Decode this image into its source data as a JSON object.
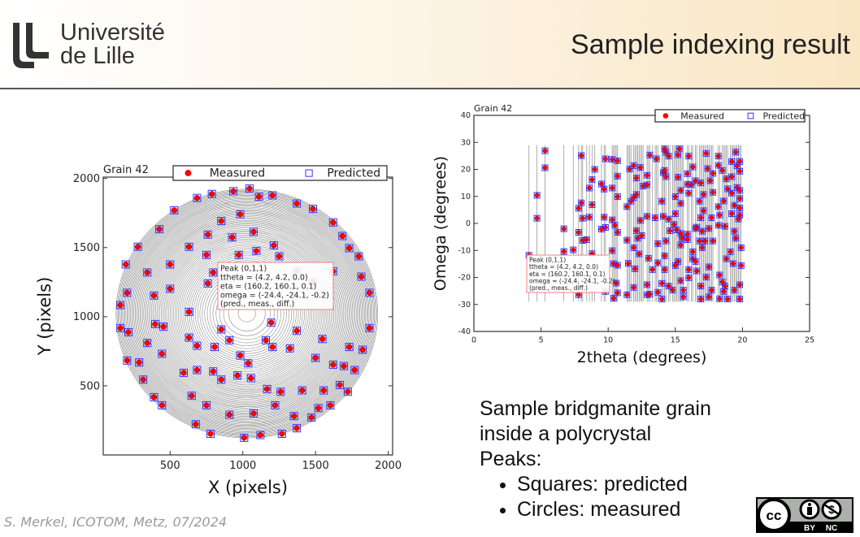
{
  "header": {
    "logo_text_line1": "Université",
    "logo_text_line2": "de Lille",
    "title": "Sample indexing result"
  },
  "description": {
    "lines": [
      "Sample bridgmanite grain",
      "inside a polycrystal",
      "Peaks:"
    ],
    "bullets": [
      "Squares: predicted",
      "Circles: measured"
    ]
  },
  "footer": {
    "credit": "S. Merkel, ICOTOM, Metz, 07/2024"
  },
  "license": {
    "badge": "CC BY NC",
    "by_label": "BY",
    "nc_label": "NC"
  },
  "colors": {
    "measured": "#ff0000",
    "predicted": "#3333ff",
    "rings": "#333333"
  },
  "chart_data": [
    {
      "type": "scatter",
      "title": "Grain 42",
      "xlabel": "X (pixels)",
      "ylabel": "Y (pixels)",
      "xlim": [
        40,
        2030
      ],
      "ylim": [
        0,
        2010
      ],
      "xticks": [
        500,
        1000,
        1500,
        2000
      ],
      "yticks": [
        500,
        1000,
        1500,
        2000
      ],
      "grid": false,
      "legend": {
        "placement": "top-right",
        "entries": [
          "Measured",
          "Predicted"
        ]
      },
      "annotation": [
        "Peak (0,1,1)",
        "ttheta = (4.2, 4.2, 0.0)",
        "eta = (160.2, 160.1, 0.1)",
        "omega = (-24.4, -24.1, -0.2)",
        "(pred., meas., diff.)"
      ],
      "rings_center": [
        1028,
        1023
      ],
      "series": [
        {
          "name": "Measured",
          "marker": "circle"
        },
        {
          "name": "Predicted",
          "marker": "square"
        }
      ],
      "points": [
        [
          1046,
          1927
        ],
        [
          935,
          1908
        ],
        [
          787,
          1888
        ],
        [
          685,
          1859
        ],
        [
          528,
          1770
        ],
        [
          426,
          1633
        ],
        [
          278,
          1506
        ],
        [
          195,
          1378
        ],
        [
          204,
          1173
        ],
        [
          158,
          1084
        ],
        [
          158,
          918
        ],
        [
          213,
          888
        ],
        [
          204,
          683
        ],
        [
          287,
          669
        ],
        [
          315,
          545
        ],
        [
          389,
          418
        ],
        [
          444,
          359
        ],
        [
          676,
          222
        ],
        [
          778,
          153
        ],
        [
          1009,
          124
        ],
        [
          1121,
          144
        ],
        [
          1269,
          153
        ],
        [
          1371,
          193
        ],
        [
          1472,
          271
        ],
        [
          1602,
          359
        ],
        [
          1722,
          457
        ],
        [
          1769,
          614
        ],
        [
          1824,
          761
        ],
        [
          1871,
          918
        ],
        [
          1871,
          1173
        ],
        [
          1815,
          1290
        ],
        [
          1797,
          1437
        ],
        [
          1732,
          1496
        ],
        [
          1685,
          1584
        ],
        [
          1621,
          1682
        ],
        [
          1482,
          1780
        ],
        [
          1371,
          1819
        ],
        [
          1204,
          1878
        ],
        [
          1111,
          1868
        ],
        [
          982,
          1741
        ],
        [
          852,
          1692
        ],
        [
          759,
          1594
        ],
        [
          630,
          1506
        ],
        [
          500,
          1378
        ],
        [
          343,
          1320
        ],
        [
          389,
          1153
        ],
        [
          630,
          1035
        ],
        [
          398,
          947
        ],
        [
          454,
          928
        ],
        [
          343,
          810
        ],
        [
          444,
          732
        ],
        [
          630,
          849
        ],
        [
          685,
          790
        ],
        [
          806,
          781
        ],
        [
          852,
          908
        ],
        [
          908,
          830
        ],
        [
          982,
          720
        ],
        [
          1037,
          663
        ],
        [
          1158,
          830
        ],
        [
          1195,
          957
        ],
        [
          1204,
          781
        ],
        [
          1324,
          771
        ],
        [
          1371,
          898
        ],
        [
          1547,
          839
        ],
        [
          1500,
          702
        ],
        [
          1732,
          781
        ],
        [
          1621,
          653
        ],
        [
          1695,
          643
        ],
        [
          852,
          545
        ],
        [
          963,
          575
        ],
        [
          1056,
          555
        ],
        [
          1167,
          477
        ],
        [
          1260,
          457
        ],
        [
          1408,
          467
        ],
        [
          1556,
          467
        ],
        [
          1667,
          506
        ],
        [
          593,
          594
        ],
        [
          685,
          614
        ],
        [
          796,
          604
        ],
        [
          648,
          428
        ],
        [
          750,
          359
        ],
        [
          908,
          291
        ],
        [
          1074,
          300
        ],
        [
          1222,
          359
        ],
        [
          1352,
          281
        ],
        [
          1519,
          339
        ],
        [
          750,
          1447
        ],
        [
          972,
          1447
        ],
        [
          1093,
          1476
        ],
        [
          1250,
          1437
        ],
        [
          1371,
          1329
        ],
        [
          1482,
          1251
        ],
        [
          1621,
          1329
        ],
        [
          1213,
          1516
        ],
        [
          1074,
          1614
        ],
        [
          926,
          1574
        ],
        [
          500,
          1202
        ],
        [
          759,
          1241
        ],
        [
          796,
          1320
        ]
      ]
    },
    {
      "type": "scatter",
      "title": "Grain 42",
      "xlabel": "2theta (degrees)",
      "ylabel": "Omega (degrees)",
      "xlim": [
        0,
        25
      ],
      "ylim": [
        -40,
        40
      ],
      "xticks": [
        0,
        5,
        10,
        15,
        20,
        25
      ],
      "yticks": [
        -40,
        -30,
        -20,
        -10,
        0,
        10,
        20,
        30,
        40
      ],
      "grid": false,
      "legend": {
        "placement": "top-right",
        "entries": [
          "Measured",
          "Predicted"
        ]
      },
      "annotation": [
        "Peak (0,1,1)",
        "ttheta = (4.2, 4.2, 0.0)",
        "eta = (160.2, 160.1, 0.1)",
        "omega = (-24.4, -24.1, -0.2)",
        "(pred., meas., diff.)"
      ],
      "ring_omega_range": [
        -29,
        29
      ],
      "series": [
        {
          "name": "Measured",
          "marker": "circle"
        },
        {
          "name": "Predicted",
          "marker": "square"
        }
      ],
      "points": [
        [
          5.3,
          26.9
        ],
        [
          5.3,
          20.6
        ],
        [
          4.7,
          10.4
        ],
        [
          4.7,
          1.9
        ],
        [
          4.1,
          -11.8
        ],
        [
          8.0,
          25.1
        ],
        [
          9.0,
          20.0
        ],
        [
          8.8,
          16.2
        ],
        [
          8.6,
          13.1
        ],
        [
          9.5,
          14.6
        ],
        [
          9.8,
          23.9
        ],
        [
          10.3,
          23.7
        ],
        [
          10.7,
          23.2
        ],
        [
          10.7,
          17.5
        ],
        [
          9.7,
          12.7
        ],
        [
          10.3,
          13.1
        ],
        [
          10.7,
          9.9
        ],
        [
          8.0,
          7.6
        ],
        [
          7.8,
          5.6
        ],
        [
          8.8,
          6.9
        ],
        [
          8.1,
          1.9
        ],
        [
          8.6,
          2.3
        ],
        [
          9.7,
          2.3
        ],
        [
          10.3,
          1.3
        ],
        [
          10.5,
          -0.7
        ],
        [
          10.7,
          -3.3
        ],
        [
          9.8,
          -1.5
        ],
        [
          9.5,
          -2.1
        ],
        [
          6.7,
          -2.0
        ],
        [
          7.8,
          -3.3
        ],
        [
          8.1,
          -6.3
        ],
        [
          8.4,
          -6.0
        ],
        [
          7.4,
          -9.8
        ],
        [
          6.7,
          -10.4
        ],
        [
          8.8,
          -11.2
        ],
        [
          10.3,
          -10.1
        ],
        [
          10.4,
          -14.9
        ],
        [
          10.7,
          -15.5
        ],
        [
          10.6,
          -22.1
        ],
        [
          10.7,
          -25.7
        ],
        [
          10.4,
          -27.7
        ],
        [
          9.8,
          -25.2
        ],
        [
          7.8,
          -26.4
        ],
        [
          11.4,
          6.2
        ],
        [
          11.7,
          8.2
        ],
        [
          11.9,
          9.6
        ],
        [
          12.1,
          10.7
        ],
        [
          11.6,
          20.1
        ],
        [
          11.9,
          21.4
        ],
        [
          12.1,
          16.8
        ],
        [
          12.4,
          20.7
        ],
        [
          12.9,
          17.8
        ],
        [
          12.6,
          13.8
        ],
        [
          12.9,
          14.3
        ],
        [
          13.1,
          25.3
        ],
        [
          13.6,
          23.9
        ],
        [
          14.3,
          26.3
        ],
        [
          14.2,
          27.6
        ],
        [
          14.1,
          18.8
        ],
        [
          14.0,
          8.2
        ],
        [
          14.1,
          2.6
        ],
        [
          14.5,
          1.6
        ],
        [
          14.3,
          -6.5
        ],
        [
          14.2,
          -12.0
        ],
        [
          14.2,
          -17.1
        ],
        [
          14.0,
          -28.0
        ],
        [
          13.7,
          -25.5
        ],
        [
          13.7,
          -7.5
        ],
        [
          13.5,
          2.1
        ],
        [
          12.9,
          2.6
        ],
        [
          12.4,
          1.1
        ],
        [
          12.1,
          -2.7
        ],
        [
          12.2,
          -5.5
        ],
        [
          12.5,
          -4.5
        ],
        [
          11.9,
          -9.0
        ],
        [
          12.3,
          -11.3
        ],
        [
          12.0,
          -16.8
        ],
        [
          11.5,
          -14.8
        ],
        [
          11.4,
          -6.2
        ],
        [
          11.4,
          -26.4
        ],
        [
          11.9,
          -23.7
        ],
        [
          13.0,
          -12.9
        ],
        [
          12.9,
          -22.7
        ],
        [
          12.9,
          -26.4
        ],
        [
          13.1,
          -26.2
        ],
        [
          13.3,
          -17.1
        ],
        [
          15.3,
          27.6
        ],
        [
          15.2,
          25.4
        ],
        [
          15.2,
          17.1
        ],
        [
          15.4,
          12.2
        ],
        [
          15.4,
          7.4
        ],
        [
          15.0,
          9.9
        ],
        [
          15.0,
          3.6
        ],
        [
          14.9,
          -0.4
        ],
        [
          15.1,
          -2.4
        ],
        [
          15.4,
          -3.7
        ],
        [
          15.9,
          -4.0
        ],
        [
          15.4,
          -8.0
        ],
        [
          15.5,
          -5.5
        ],
        [
          15.9,
          -6.0
        ],
        [
          15.2,
          -14.1
        ],
        [
          15.0,
          -15.6
        ],
        [
          15.4,
          -21.2
        ],
        [
          15.6,
          -24.7
        ],
        [
          15.6,
          -27.2
        ],
        [
          16.0,
          -17.1
        ],
        [
          16.0,
          -20.1
        ],
        [
          16.3,
          -10.5
        ],
        [
          16.3,
          -13.1
        ],
        [
          16.5,
          -14.1
        ],
        [
          16.6,
          -17.6
        ],
        [
          16.9,
          -23.2
        ],
        [
          16.9,
          -28.0
        ],
        [
          17.3,
          -19.9
        ],
        [
          17.5,
          -16.1
        ],
        [
          17.5,
          -27.2
        ],
        [
          17.7,
          -24.7
        ],
        [
          18.3,
          -27.9
        ],
        [
          18.6,
          -25.2
        ],
        [
          18.7,
          -23.2
        ],
        [
          18.3,
          -19.1
        ],
        [
          18.5,
          -21.7
        ],
        [
          18.9,
          -28.0
        ],
        [
          19.4,
          -24.7
        ],
        [
          19.8,
          -22.7
        ],
        [
          19.8,
          -28.0
        ],
        [
          19.9,
          -15.6
        ],
        [
          19.9,
          -9.0
        ],
        [
          19.5,
          -5.5
        ],
        [
          19.4,
          -2.9
        ],
        [
          19.1,
          -10.5
        ],
        [
          18.8,
          -13.1
        ],
        [
          19.3,
          -14.9
        ],
        [
          18.7,
          -1.1
        ],
        [
          18.2,
          -0.7
        ],
        [
          17.7,
          2.1
        ],
        [
          17.5,
          -1.9
        ],
        [
          17.0,
          -2.9
        ],
        [
          16.8,
          -6.5
        ],
        [
          17.2,
          -6.5
        ],
        [
          17.8,
          -6.5
        ],
        [
          17.0,
          -9.0
        ],
        [
          17.1,
          4.7
        ],
        [
          16.9,
          2.1
        ],
        [
          16.6,
          -1.4
        ],
        [
          16.5,
          -1.9
        ],
        [
          16.0,
          11.2
        ],
        [
          16.2,
          14.3
        ],
        [
          15.9,
          14.5
        ],
        [
          15.9,
          18.4
        ],
        [
          16.0,
          24.9
        ],
        [
          16.3,
          20.9
        ],
        [
          16.5,
          15.8
        ],
        [
          16.8,
          8.2
        ],
        [
          17.1,
          10.7
        ],
        [
          16.9,
          15.0
        ],
        [
          17.3,
          25.9
        ],
        [
          17.4,
          20.3
        ],
        [
          17.6,
          15.8
        ],
        [
          17.8,
          18.5
        ],
        [
          17.8,
          11.5
        ],
        [
          18.2,
          21.5
        ],
        [
          18.2,
          24.9
        ],
        [
          18.2,
          6.2
        ],
        [
          18.3,
          3.1
        ],
        [
          18.5,
          19.6
        ],
        [
          18.6,
          8.3
        ],
        [
          18.8,
          16.5
        ],
        [
          18.9,
          12.8
        ],
        [
          19.2,
          22.9
        ],
        [
          19.2,
          17.3
        ],
        [
          19.2,
          11.2
        ],
        [
          19.4,
          6.7
        ],
        [
          19.2,
          3.6
        ],
        [
          19.5,
          26.4
        ],
        [
          19.6,
          21.3
        ],
        [
          19.6,
          13.3
        ],
        [
          19.7,
          1.6
        ],
        [
          19.8,
          3.1
        ],
        [
          19.8,
          9.2
        ],
        [
          19.8,
          19.3
        ],
        [
          19.8,
          22.9
        ],
        [
          19.8,
          12.2
        ],
        [
          19.8,
          5.7
        ],
        [
          14.3,
          17.3
        ],
        [
          14.5,
          24.9
        ],
        [
          14.2,
          19.6
        ],
        [
          14.6,
          -2.7
        ],
        [
          13.7,
          -14.6
        ],
        [
          14.0,
          -22.2
        ],
        [
          14.5,
          -23.2
        ],
        [
          14.8,
          -24.7
        ]
      ]
    }
  ]
}
